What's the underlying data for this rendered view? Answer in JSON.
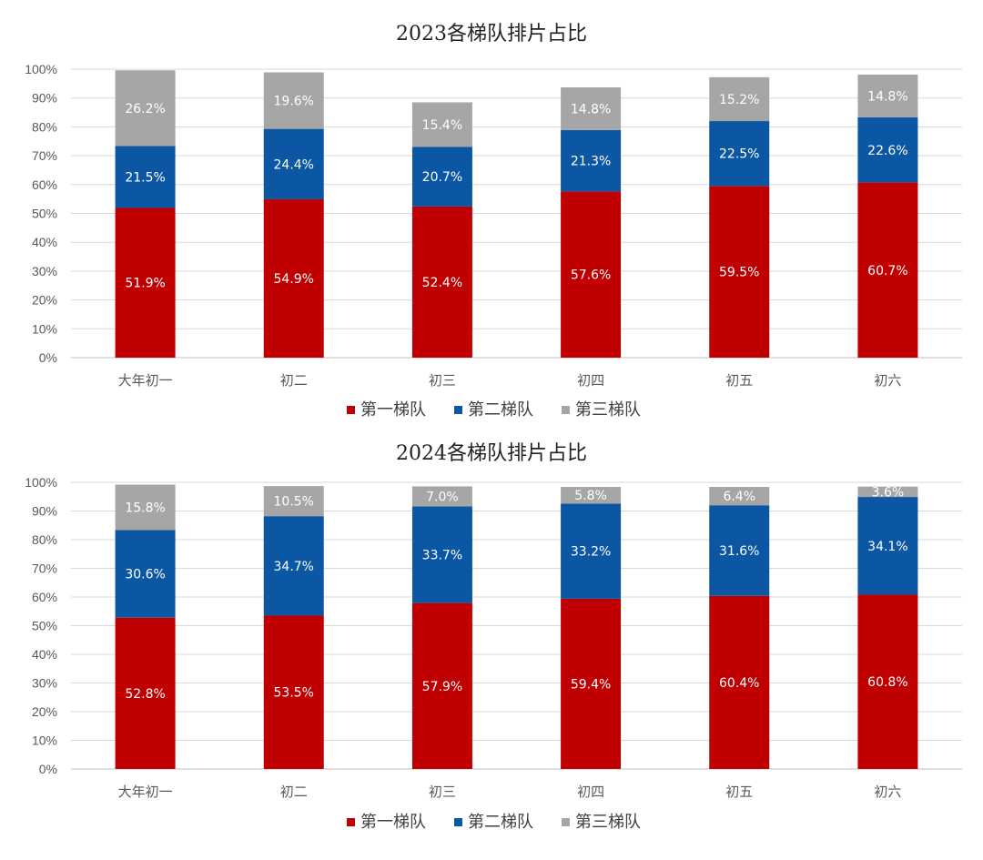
{
  "chart_data": [
    {
      "type": "bar",
      "stacked": true,
      "title": "2023各梯队排片占比",
      "categories": [
        "大年初一",
        "初二",
        "初三",
        "初四",
        "初五",
        "初六"
      ],
      "yticks": [
        "0%",
        "10%",
        "20%",
        "30%",
        "40%",
        "50%",
        "60%",
        "70%",
        "80%",
        "90%",
        "100%"
      ],
      "ylim": [
        0,
        100
      ],
      "grid": true,
      "legend_position": "bottom",
      "series": [
        {
          "name": "第一梯队",
          "color": "#c00000",
          "values": [
            51.9,
            54.9,
            52.4,
            57.6,
            59.5,
            60.7
          ],
          "labels": [
            "51.9%",
            "54.9%",
            "52.4%",
            "57.6%",
            "59.5%",
            "60.7%"
          ]
        },
        {
          "name": "第二梯队",
          "color": "#0b57a4",
          "values": [
            21.5,
            24.4,
            20.7,
            21.3,
            22.5,
            22.6
          ],
          "labels": [
            "21.5%",
            "24.4%",
            "20.7%",
            "21.3%",
            "22.5%",
            "22.6%"
          ]
        },
        {
          "name": "第三梯队",
          "color": "#a6a6a6",
          "values": [
            26.2,
            19.6,
            15.4,
            14.8,
            15.2,
            14.8
          ],
          "labels": [
            "26.2%",
            "19.6%",
            "15.4%",
            "14.8%",
            "15.2%",
            "14.8%"
          ]
        }
      ]
    },
    {
      "type": "bar",
      "stacked": true,
      "title": "2024各梯队排片占比",
      "categories": [
        "大年初一",
        "初二",
        "初三",
        "初四",
        "初五",
        "初六"
      ],
      "yticks": [
        "0%",
        "10%",
        "20%",
        "30%",
        "40%",
        "50%",
        "60%",
        "70%",
        "80%",
        "90%",
        "100%"
      ],
      "ylim": [
        0,
        100
      ],
      "grid": true,
      "legend_position": "bottom",
      "series": [
        {
          "name": "第一梯队",
          "color": "#c00000",
          "values": [
            52.8,
            53.5,
            57.9,
            59.4,
            60.4,
            60.8
          ],
          "labels": [
            "52.8%",
            "53.5%",
            "57.9%",
            "59.4%",
            "60.4%",
            "60.8%"
          ]
        },
        {
          "name": "第二梯队",
          "color": "#0b57a4",
          "values": [
            30.6,
            34.7,
            33.7,
            33.2,
            31.6,
            34.1
          ],
          "labels": [
            "30.6%",
            "34.7%",
            "33.7%",
            "33.2%",
            "31.6%",
            "34.1%"
          ]
        },
        {
          "name": "第三梯队",
          "color": "#a6a6a6",
          "values": [
            15.8,
            10.5,
            7.0,
            5.8,
            6.4,
            3.6
          ],
          "labels": [
            "15.8%",
            "10.5%",
            "7.0%",
            "5.8%",
            "6.4%",
            "3.6%"
          ]
        }
      ]
    }
  ]
}
